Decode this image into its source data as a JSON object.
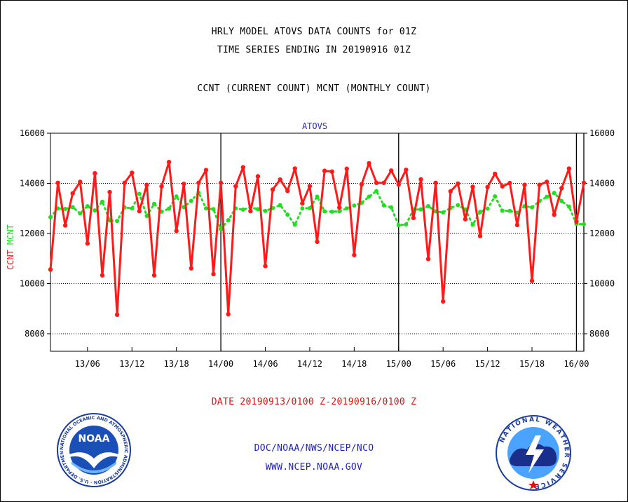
{
  "header": {
    "title_line1": "HRLY MODEL ATOVS DATA COUNTS for 01Z",
    "title_line2": "TIME SERIES ENDING IN 20190916 01Z",
    "subtitle": "CCNT (CURRENT COUNT) MCNT (MONTHLY COUNT)"
  },
  "footer": {
    "date_range": "DATE 20190913/0100 Z-20190916/0100 Z",
    "org_path": "DOC/NOAA/NWS/NCEP/NCO",
    "website": "WWW.NCEP.NOAA.GOV"
  },
  "logos": {
    "noaa_text": "NOAA",
    "noaa_ring": "NATIONAL OCEANIC AND ATMOSPHERIC ADMINISTRATION · U.S. DEPARTMENT OF COMMERCE",
    "nws_ring": "NATIONAL WEATHER SERVICE"
  },
  "colors": {
    "ccnt": "#ff1a1a",
    "mcnt": "#22dd22",
    "inset_title": "#2a2acc",
    "footer_red": "#e01010",
    "footer_blue": "#1f1fbf"
  },
  "chart_data": {
    "type": "line",
    "title": "ATOVS",
    "ylabel_left_parts": [
      "CCNT",
      "MCNT"
    ],
    "ylim": [
      7300,
      16000
    ],
    "yticks": [
      8000,
      10000,
      12000,
      14000,
      16000
    ],
    "ytick_labels": [
      "8000",
      "10000",
      "12000",
      "14000",
      "16000"
    ],
    "grid_y": true,
    "x_hours_range": [
      1,
      73
    ],
    "xtick_hours": [
      6,
      12,
      18,
      24,
      30,
      36,
      42,
      48,
      54,
      60,
      66,
      72
    ],
    "xtick_labels": [
      "13/06",
      "13/12",
      "13/18",
      "14/00",
      "14/06",
      "14/12",
      "14/18",
      "15/00",
      "15/06",
      "15/12",
      "15/18",
      "16/00"
    ],
    "day_boundaries_hours": [
      24,
      48,
      72
    ],
    "series": [
      {
        "name": "CCNT",
        "color": "#ff1a1a",
        "x": [
          1,
          2,
          3,
          4,
          5,
          6,
          7,
          8,
          9,
          10,
          11,
          12,
          13,
          14,
          15,
          16,
          17,
          18,
          19,
          20,
          21,
          22,
          23,
          24,
          25,
          26,
          27,
          28,
          29,
          30,
          31,
          32,
          33,
          34,
          35,
          36,
          37,
          38,
          39,
          40,
          41,
          42,
          43,
          44,
          45,
          46,
          47,
          48,
          49,
          50,
          51,
          52,
          53,
          54,
          55,
          56,
          57,
          58,
          59,
          60,
          61,
          62,
          63,
          64,
          65,
          66,
          67,
          68,
          69,
          70,
          71,
          72,
          73
        ],
        "y": [
          10560,
          14020,
          12320,
          13600,
          14060,
          11600,
          14400,
          10330,
          13650,
          8760,
          14020,
          14420,
          12890,
          13940,
          10330,
          13880,
          14850,
          12100,
          13980,
          10610,
          14020,
          14530,
          10380,
          14020,
          8780,
          13880,
          14640,
          12890,
          14280,
          10700,
          13750,
          14150,
          13700,
          14590,
          13200,
          13890,
          11670,
          14500,
          14470,
          13030,
          14580,
          11140,
          13960,
          14800,
          14020,
          14020,
          14510,
          13950,
          14540,
          12620,
          14160,
          10980,
          14020,
          9290,
          13680,
          13990,
          12570,
          13860,
          11900,
          13850,
          14380,
          13880,
          14010,
          12340,
          13940,
          10110,
          13940,
          14060,
          12750,
          13810,
          14590,
          12470,
          14020
        ]
      },
      {
        "name": "MCNT",
        "color": "#22dd22",
        "x": [
          1,
          2,
          3,
          4,
          5,
          6,
          7,
          8,
          9,
          10,
          11,
          12,
          13,
          14,
          15,
          16,
          17,
          18,
          19,
          20,
          21,
          22,
          23,
          24,
          25,
          26,
          27,
          28,
          29,
          30,
          31,
          32,
          33,
          34,
          35,
          36,
          37,
          38,
          39,
          40,
          41,
          42,
          43,
          44,
          45,
          46,
          47,
          48,
          49,
          50,
          51,
          52,
          53,
          54,
          55,
          56,
          57,
          58,
          59,
          60,
          61,
          62,
          63,
          64,
          65,
          66,
          67,
          68,
          69,
          70,
          71,
          72,
          73
        ],
        "y": [
          12650,
          13000,
          12980,
          13050,
          12800,
          13090,
          12920,
          13270,
          12520,
          12500,
          13040,
          13000,
          13580,
          12700,
          13180,
          12870,
          12990,
          13480,
          13050,
          13300,
          13630,
          13000,
          12970,
          12170,
          12530,
          13000,
          12950,
          13040,
          12970,
          12900,
          13010,
          13130,
          12750,
          12350,
          13000,
          13010,
          13470,
          12880,
          12870,
          12880,
          13000,
          13110,
          13220,
          13470,
          13690,
          13120,
          13040,
          12330,
          12360,
          12950,
          12960,
          13090,
          12880,
          12840,
          13020,
          13130,
          12960,
          12350,
          12860,
          12990,
          13480,
          12910,
          12900,
          12830,
          13090,
          13040,
          13290,
          13460,
          13620,
          13290,
          13070,
          12380,
          12370
        ]
      }
    ]
  }
}
